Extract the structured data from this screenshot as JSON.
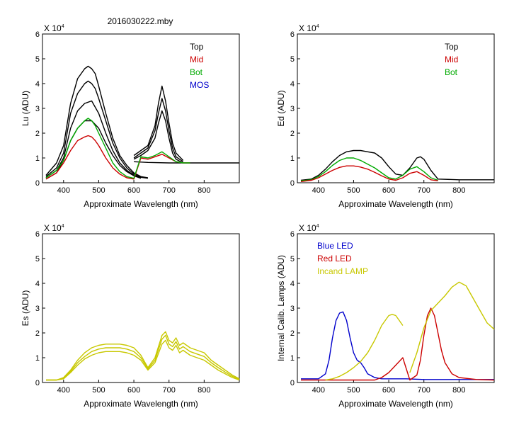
{
  "figure_title": "2016030222.mby",
  "colors": {
    "black": "#000000",
    "red": "#cc0000",
    "green": "#00aa00",
    "blue": "#0000cc",
    "olive": "#c8c800"
  },
  "chart_data": [
    {
      "id": "lu",
      "type": "line",
      "exponent_label": "X 10",
      "exponent_sup": "4",
      "ylabel": "Lu (ADU)",
      "xlabel": "Approximate Wavelength (nm)",
      "xlim": [
        340,
        900
      ],
      "ylim": [
        0,
        6
      ],
      "xticks": [
        400,
        500,
        600,
        700,
        800
      ],
      "yticks": [
        0,
        1,
        2,
        3,
        4,
        5,
        6
      ],
      "legend": [
        {
          "label": "Top",
          "color": "#000000"
        },
        {
          "label": "Mid",
          "color": "#cc0000"
        },
        {
          "label": "Bot",
          "color": "#00aa00"
        },
        {
          "label": "MOS",
          "color": "#0000cc"
        }
      ],
      "series": [
        {
          "name": "Top-1",
          "color": "#000000",
          "x": [
            350,
            380,
            400,
            420,
            440,
            460,
            470,
            480,
            490,
            500,
            520,
            540,
            560,
            580,
            600,
            620,
            640
          ],
          "y": [
            0.3,
            0.8,
            1.5,
            3.2,
            4.2,
            4.6,
            4.7,
            4.6,
            4.4,
            3.9,
            2.8,
            1.8,
            1.1,
            0.7,
            0.4,
            0.25,
            0.2
          ]
        },
        {
          "name": "Top-2",
          "color": "#000000",
          "x": [
            350,
            380,
            400,
            420,
            440,
            460,
            470,
            480,
            490,
            500,
            520,
            540,
            560,
            580,
            600,
            620,
            640
          ],
          "y": [
            0.25,
            0.6,
            1.2,
            2.8,
            3.6,
            4.0,
            4.1,
            4.0,
            3.8,
            3.4,
            2.5,
            1.6,
            1.0,
            0.6,
            0.35,
            0.22,
            0.18
          ]
        },
        {
          "name": "Top-3",
          "color": "#000000",
          "x": [
            350,
            380,
            400,
            420,
            440,
            460,
            480,
            500,
            520,
            540,
            560,
            580,
            600,
            620
          ],
          "y": [
            0.2,
            0.5,
            1.0,
            2.2,
            2.9,
            3.2,
            3.3,
            2.8,
            2.0,
            1.3,
            0.8,
            0.5,
            0.3,
            0.2
          ]
        },
        {
          "name": "Top-4",
          "color": "#000000",
          "x": [
            350,
            380,
            400,
            420,
            440,
            460,
            480,
            500,
            520,
            540,
            560,
            580,
            600,
            620
          ],
          "y": [
            0.15,
            0.4,
            0.9,
            1.7,
            2.2,
            2.5,
            2.5,
            2.2,
            1.6,
            1.1,
            0.7,
            0.45,
            0.28,
            0.18
          ]
        },
        {
          "name": "Top-red-1",
          "color": "#000000",
          "x": [
            600,
            620,
            640,
            660,
            670,
            680,
            690,
            700,
            710,
            720,
            740
          ],
          "y": [
            1.1,
            1.3,
            1.5,
            2.3,
            3.2,
            3.9,
            3.3,
            2.4,
            1.6,
            1.2,
            0.9
          ]
        },
        {
          "name": "Top-red-2",
          "color": "#000000",
          "x": [
            600,
            620,
            640,
            660,
            670,
            680,
            690,
            700,
            710,
            720,
            740
          ],
          "y": [
            1.0,
            1.2,
            1.4,
            2.1,
            2.8,
            3.4,
            2.9,
            2.1,
            1.4,
            1.05,
            0.85
          ]
        },
        {
          "name": "Top-red-3",
          "color": "#000000",
          "x": [
            600,
            620,
            640,
            660,
            670,
            680,
            690,
            700,
            710,
            720,
            740
          ],
          "y": [
            0.95,
            1.1,
            1.3,
            1.8,
            2.4,
            2.9,
            2.5,
            1.8,
            1.2,
            0.95,
            0.8
          ]
        },
        {
          "name": "Baseline",
          "color": "#000000",
          "x": [
            600,
            640,
            700,
            760,
            800,
            850,
            900
          ],
          "y": [
            0.85,
            0.82,
            0.8,
            0.8,
            0.8,
            0.8,
            0.8
          ]
        },
        {
          "name": "Mid",
          "color": "#cc0000",
          "x": [
            350,
            380,
            400,
            420,
            440,
            460,
            470,
            480,
            490,
            500,
            520,
            540,
            560,
            580,
            600,
            620,
            640,
            660,
            680,
            700,
            720,
            740,
            760
          ],
          "y": [
            0.15,
            0.4,
            0.8,
            1.3,
            1.7,
            1.85,
            1.9,
            1.85,
            1.7,
            1.5,
            1.0,
            0.6,
            0.35,
            0.2,
            0.15,
            1.0,
            0.95,
            1.05,
            1.15,
            1.0,
            0.85,
            0.8,
            0.8
          ]
        },
        {
          "name": "Bot",
          "color": "#00aa00",
          "x": [
            350,
            380,
            400,
            420,
            440,
            460,
            470,
            480,
            490,
            500,
            520,
            540,
            560,
            580,
            600,
            620,
            640,
            660,
            680,
            700,
            720,
            740,
            760
          ],
          "y": [
            0.2,
            0.5,
            0.9,
            1.7,
            2.2,
            2.5,
            2.6,
            2.5,
            2.3,
            2.0,
            1.4,
            0.8,
            0.45,
            0.25,
            0.18,
            1.05,
            1.0,
            1.1,
            1.25,
            1.05,
            0.85,
            0.8,
            0.8
          ]
        }
      ]
    },
    {
      "id": "ed",
      "type": "line",
      "exponent_label": "X 10",
      "exponent_sup": "4",
      "ylabel": "Ed  (ADU)",
      "xlabel": "Approximate Wavelength (nm)",
      "xlim": [
        340,
        900
      ],
      "ylim": [
        0,
        6
      ],
      "xticks": [
        400,
        500,
        600,
        700,
        800
      ],
      "yticks": [
        0,
        1,
        2,
        3,
        4,
        5,
        6
      ],
      "legend": [
        {
          "label": "Top",
          "color": "#000000"
        },
        {
          "label": "Mid",
          "color": "#cc0000"
        },
        {
          "label": "Bot",
          "color": "#00aa00"
        }
      ],
      "series": [
        {
          "name": "Top",
          "color": "#000000",
          "x": [
            350,
            380,
            400,
            420,
            440,
            460,
            480,
            500,
            520,
            540,
            560,
            580,
            600,
            620,
            640,
            660,
            680,
            690,
            700,
            720,
            740,
            800,
            900
          ],
          "y": [
            0.1,
            0.15,
            0.3,
            0.55,
            0.85,
            1.1,
            1.25,
            1.3,
            1.3,
            1.25,
            1.2,
            1.0,
            0.65,
            0.35,
            0.3,
            0.6,
            1.0,
            1.05,
            0.95,
            0.5,
            0.15,
            0.12,
            0.12
          ]
        },
        {
          "name": "Bot",
          "color": "#00aa00",
          "x": [
            350,
            380,
            400,
            420,
            440,
            460,
            480,
            500,
            520,
            540,
            560,
            580,
            600,
            620,
            640,
            660,
            680,
            700,
            720,
            740
          ],
          "y": [
            0.08,
            0.12,
            0.25,
            0.45,
            0.7,
            0.9,
            1.0,
            1.0,
            0.9,
            0.75,
            0.6,
            0.4,
            0.2,
            0.15,
            0.3,
            0.55,
            0.65,
            0.45,
            0.2,
            0.1
          ]
        },
        {
          "name": "Mid",
          "color": "#cc0000",
          "x": [
            350,
            380,
            400,
            420,
            440,
            460,
            480,
            500,
            520,
            540,
            560,
            580,
            600,
            620,
            640,
            660,
            680,
            700,
            720,
            740
          ],
          "y": [
            0.05,
            0.1,
            0.2,
            0.35,
            0.5,
            0.62,
            0.68,
            0.68,
            0.63,
            0.55,
            0.42,
            0.28,
            0.15,
            0.1,
            0.2,
            0.38,
            0.45,
            0.3,
            0.12,
            0.08
          ]
        }
      ]
    },
    {
      "id": "es",
      "type": "line",
      "exponent_label": "X 10",
      "exponent_sup": "4",
      "ylabel": "Es  (ADU)",
      "xlabel": "Approximate Wavelength (nm)",
      "xlim": [
        340,
        900
      ],
      "ylim": [
        0,
        6
      ],
      "xticks": [
        400,
        500,
        600,
        700,
        800
      ],
      "yticks": [
        0,
        1,
        2,
        3,
        4,
        5,
        6
      ],
      "legend": [],
      "series": [
        {
          "name": "Es-1",
          "color": "#c8c800",
          "x": [
            350,
            380,
            400,
            420,
            440,
            460,
            480,
            500,
            520,
            540,
            560,
            580,
            600,
            620,
            640,
            660,
            680,
            690,
            700,
            710,
            720,
            730,
            740,
            760,
            780,
            800,
            820,
            840,
            860,
            880,
            900
          ],
          "y": [
            0.1,
            0.1,
            0.2,
            0.5,
            0.9,
            1.2,
            1.4,
            1.5,
            1.55,
            1.55,
            1.55,
            1.5,
            1.4,
            1.1,
            0.6,
            1.0,
            1.9,
            2.05,
            1.7,
            1.6,
            1.8,
            1.5,
            1.6,
            1.4,
            1.3,
            1.2,
            0.9,
            0.7,
            0.5,
            0.3,
            0.15
          ]
        },
        {
          "name": "Es-2",
          "color": "#c8c800",
          "x": [
            350,
            380,
            400,
            420,
            440,
            460,
            480,
            500,
            520,
            540,
            560,
            580,
            600,
            620,
            640,
            660,
            680,
            690,
            700,
            710,
            720,
            730,
            740,
            760,
            780,
            800,
            820,
            840,
            860,
            880,
            900
          ],
          "y": [
            0.1,
            0.1,
            0.18,
            0.45,
            0.8,
            1.05,
            1.25,
            1.35,
            1.4,
            1.4,
            1.4,
            1.35,
            1.25,
            1.0,
            0.55,
            0.9,
            1.75,
            1.9,
            1.55,
            1.45,
            1.65,
            1.35,
            1.45,
            1.25,
            1.15,
            1.05,
            0.8,
            0.6,
            0.42,
            0.25,
            0.12
          ]
        },
        {
          "name": "Es-3",
          "color": "#c8c800",
          "x": [
            350,
            380,
            400,
            420,
            440,
            460,
            480,
            500,
            520,
            540,
            560,
            580,
            600,
            620,
            640,
            660,
            680,
            690,
            700,
            710,
            720,
            730,
            740,
            760,
            780,
            800,
            820,
            840,
            860,
            880,
            900
          ],
          "y": [
            0.1,
            0.1,
            0.15,
            0.4,
            0.7,
            0.95,
            1.1,
            1.2,
            1.25,
            1.25,
            1.25,
            1.2,
            1.1,
            0.9,
            0.5,
            0.8,
            1.55,
            1.7,
            1.4,
            1.3,
            1.5,
            1.2,
            1.3,
            1.1,
            1.0,
            0.9,
            0.7,
            0.5,
            0.35,
            0.2,
            0.1
          ]
        }
      ]
    },
    {
      "id": "calib",
      "type": "line",
      "exponent_label": "X 10",
      "exponent_sup": "4",
      "ylabel": "Internal Calib. Lamps (ADU)",
      "xlabel": "Approximate Wavelength (nm)",
      "xlim": [
        340,
        900
      ],
      "ylim": [
        0,
        6
      ],
      "xticks": [
        400,
        500,
        600,
        700,
        800
      ],
      "yticks": [
        0,
        1,
        2,
        3,
        4,
        5,
        6
      ],
      "legend": [
        {
          "label": "Blue LED",
          "color": "#0000cc"
        },
        {
          "label": "Red LED",
          "color": "#cc0000"
        },
        {
          "label": "Incand LAMP",
          "color": "#c8c800"
        }
      ],
      "series": [
        {
          "name": "Blue LED",
          "color": "#0000cc",
          "x": [
            350,
            380,
            400,
            420,
            430,
            440,
            450,
            460,
            470,
            480,
            490,
            500,
            510,
            520,
            530,
            540,
            560,
            580,
            600,
            650,
            700,
            800,
            900
          ],
          "y": [
            0.15,
            0.15,
            0.15,
            0.35,
            0.9,
            1.8,
            2.5,
            2.8,
            2.85,
            2.5,
            1.8,
            1.2,
            0.9,
            0.8,
            0.6,
            0.35,
            0.2,
            0.15,
            0.15,
            0.15,
            0.12,
            0.12,
            0.12
          ]
        },
        {
          "name": "Red LED",
          "color": "#cc0000",
          "x": [
            350,
            400,
            500,
            560,
            580,
            600,
            620,
            640,
            660,
            680,
            690,
            700,
            710,
            720,
            730,
            740,
            750,
            760,
            780,
            800,
            850,
            900
          ],
          "y": [
            0.1,
            0.1,
            0.1,
            0.1,
            0.2,
            0.4,
            0.7,
            1.0,
            0.1,
            0.3,
            0.9,
            1.9,
            2.7,
            3.0,
            2.7,
            2.0,
            1.3,
            0.8,
            0.35,
            0.2,
            0.12,
            0.1
          ]
        },
        {
          "name": "Incand LAMP",
          "color": "#c8c800",
          "x": [
            420,
            440,
            460,
            480,
            500,
            520,
            540,
            560,
            580,
            600,
            610,
            620,
            630,
            640
          ],
          "y": [
            0.1,
            0.15,
            0.25,
            0.4,
            0.6,
            0.85,
            1.2,
            1.7,
            2.3,
            2.7,
            2.75,
            2.7,
            2.5,
            2.3
          ]
        },
        {
          "name": "Incand LAMP 2",
          "color": "#c8c800",
          "x": [
            660,
            680,
            700,
            720,
            740,
            760,
            780,
            800,
            820,
            840,
            860,
            880,
            900
          ],
          "y": [
            0.4,
            1.2,
            2.2,
            2.9,
            3.2,
            3.5,
            3.85,
            4.05,
            3.9,
            3.4,
            2.9,
            2.4,
            2.15
          ]
        }
      ]
    }
  ]
}
